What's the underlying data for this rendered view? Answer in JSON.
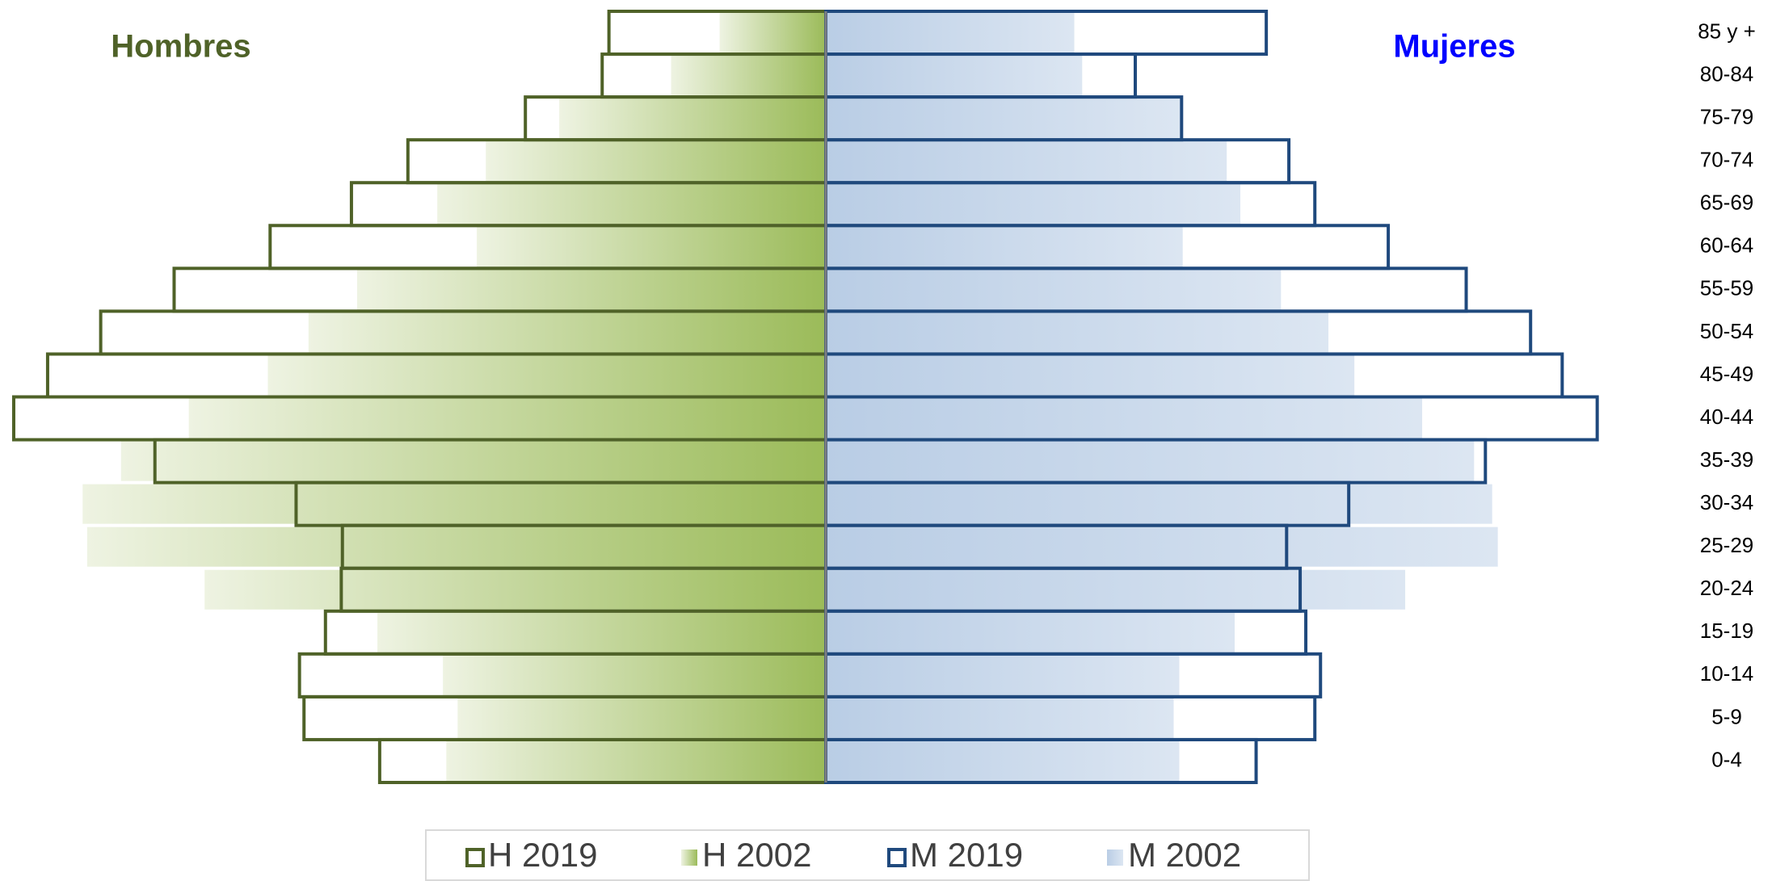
{
  "chart_data": {
    "type": "pyramid",
    "categories": [
      "85 y +",
      "80-84",
      "75-79",
      "70-74",
      "65-69",
      "60-64",
      "55-59",
      "50-54",
      "45-49",
      "40-44",
      "35-39",
      "30-34",
      "25-29",
      "20-24",
      "15-19",
      "10-14",
      "5-9",
      "0-4"
    ],
    "annotations": [
      {
        "text": "Hombres",
        "color": "#4f6228",
        "side": "left"
      },
      {
        "text": "Mujeres",
        "color": "#0000ff",
        "side": "right"
      }
    ],
    "series": [
      {
        "name": "H 2019",
        "side": "left",
        "style": "outline",
        "color": "#4f6228",
        "values": [
          192,
          198,
          266,
          370,
          420,
          492,
          577,
          642,
          689,
          719,
          594,
          469,
          428,
          429,
          443,
          466,
          462,
          395
        ]
      },
      {
        "name": "H 2002",
        "side": "left",
        "style": "gradient",
        "color": "#9bbb59",
        "color_light": "#eef3e2",
        "values": [
          94,
          137,
          236,
          301,
          344,
          309,
          415,
          458,
          494,
          564,
          624,
          658,
          654,
          550,
          397,
          339,
          326,
          336
        ]
      },
      {
        "name": "M 2019",
        "side": "right",
        "style": "outline",
        "color": "#1f497d",
        "values": [
          390,
          274,
          315,
          410,
          433,
          498,
          567,
          624,
          652,
          683,
          584,
          463,
          408,
          420,
          425,
          438,
          433,
          381
        ]
      },
      {
        "name": "M 2002",
        "side": "right",
        "style": "gradient",
        "color": "#b9cde5",
        "color_light": "#dce6f2",
        "values": [
          220,
          227,
          315,
          355,
          367,
          316,
          403,
          445,
          468,
          528,
          574,
          590,
          595,
          513,
          362,
          313,
          308,
          313
        ]
      }
    ]
  }
}
